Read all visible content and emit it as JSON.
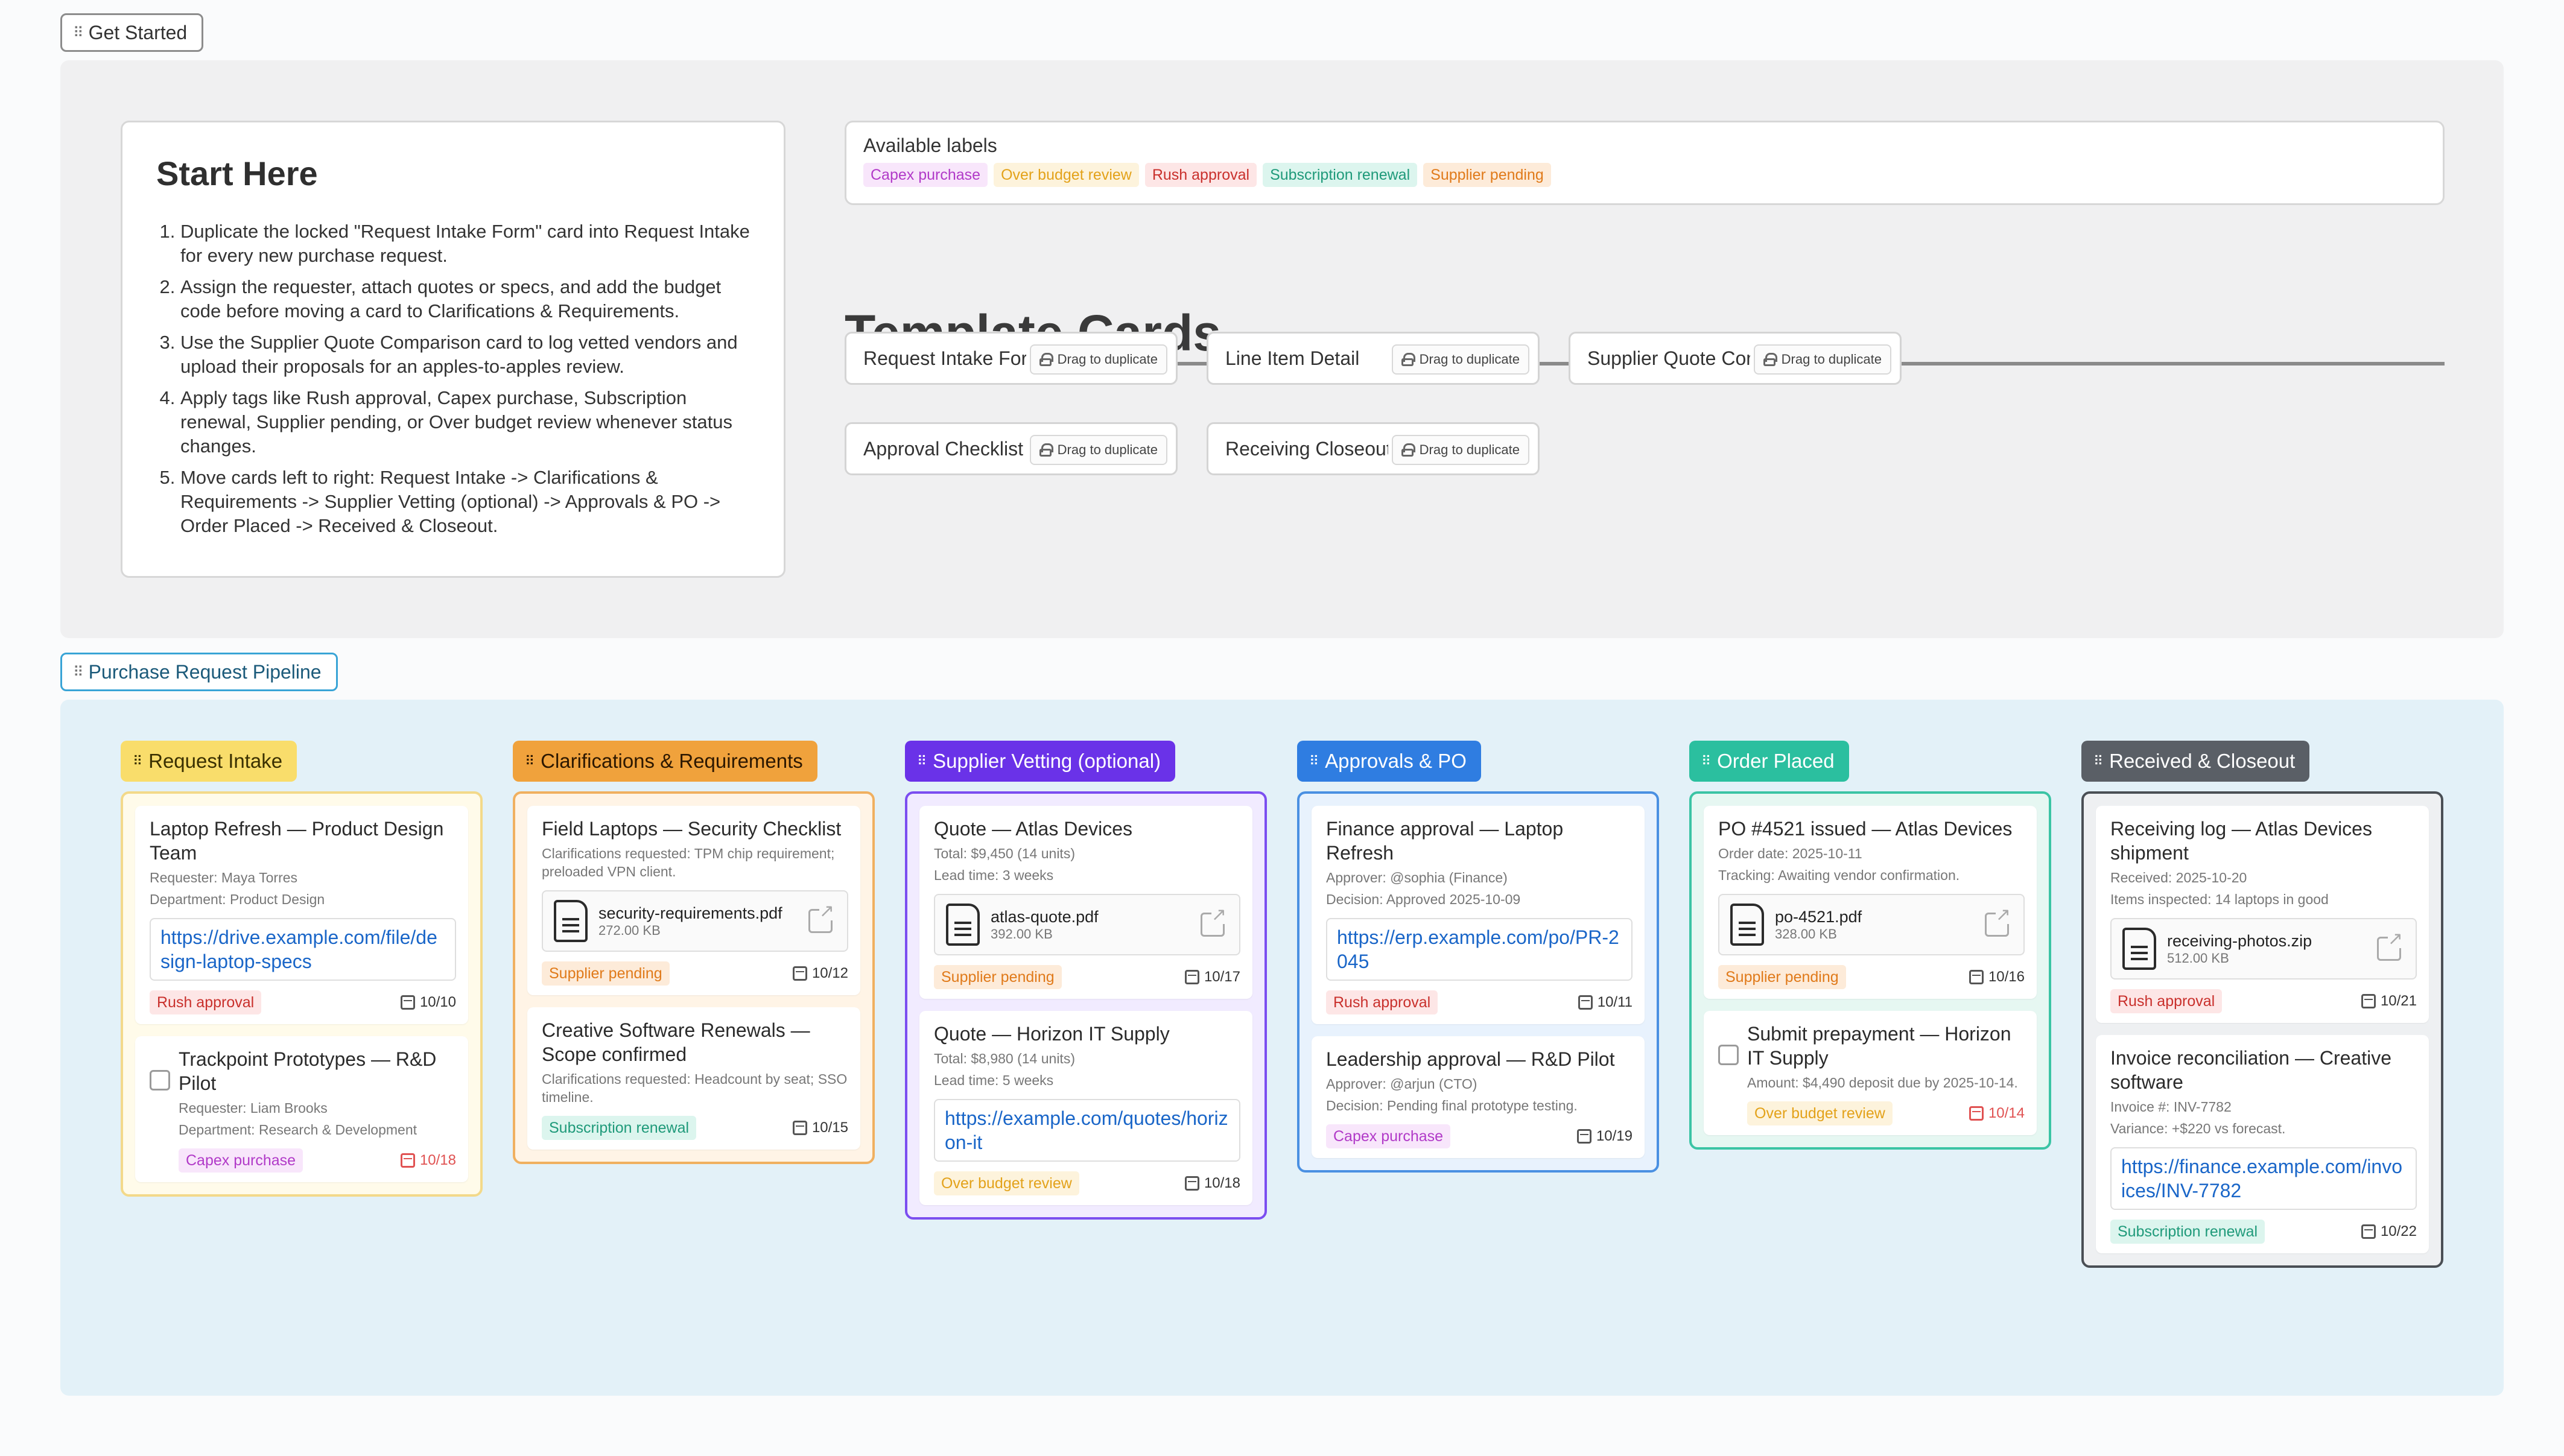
{
  "sections": {
    "get_started": "Get Started",
    "pipeline": "Purchase Request Pipeline"
  },
  "start_here": {
    "title": "Start Here",
    "steps": [
      "Duplicate the locked \"Request Intake Form\" card into Request Intake for every new purchase request.",
      "Assign the requester, attach quotes or specs, and add the budget code before moving a card to Clarifications & Requirements.",
      "Use the Supplier Quote Comparison card to log vetted vendors and upload their proposals for an apples-to-apples review.",
      "Apply tags like Rush approval, Capex purchase, Subscription renewal, Supplier pending, or Over budget review whenever status changes.",
      "Move cards left to right: Request Intake -> Clarifications & Requirements -> Supplier Vetting (optional) -> Approvals & PO -> Order Placed -> Received & Closeout."
    ]
  },
  "labels_panel": {
    "title": "Available labels",
    "labels": [
      {
        "text": "Capex purchase",
        "bg": "#f8e6fb",
        "fg": "#b13ac8"
      },
      {
        "text": "Over budget review",
        "bg": "#fdf3dc",
        "fg": "#e3a21a"
      },
      {
        "text": "Rush approval",
        "bg": "#fde6e6",
        "fg": "#c9302c"
      },
      {
        "text": "Subscription renewal",
        "bg": "#dcf5ee",
        "fg": "#1f9a7a"
      },
      {
        "text": "Supplier pending",
        "bg": "#fdebd9",
        "fg": "#e07a1a"
      }
    ]
  },
  "template_cards": {
    "title": "Template Cards",
    "drag_label": "Drag to duplicate",
    "cards": [
      "Request Intake Form",
      "Line Item Detail",
      "Supplier Quote Comparison",
      "Approval Checklist",
      "Receiving Closeout"
    ]
  },
  "columns": [
    {
      "title": "Request Intake",
      "header_bg": "#f9dd6b",
      "header_fg": "#3a3000",
      "border": "#f3d98a",
      "body_bg": "#fffbea",
      "cards": [
        {
          "title": "Laptop Refresh — Product Design Team",
          "meta": [
            "Requester: Maya Torres",
            "Department: Product Design"
          ],
          "link": "https://drive.example.com/file/design-laptop-specs",
          "label": {
            "text": "Rush approval",
            "bg": "#fde6e6",
            "fg": "#c9302c"
          },
          "date": "10/10"
        },
        {
          "title": "Trackpoint Prototypes — R&D Pilot",
          "checkbox": true,
          "meta": [
            "Requester: Liam Brooks",
            "Department: Research & Development"
          ],
          "label": {
            "text": "Capex purchase",
            "bg": "#f8e6fb",
            "fg": "#b13ac8"
          },
          "date": "10/18",
          "overdue": true
        }
      ]
    },
    {
      "title": "Clarifications & Requirements",
      "header_bg": "#f0a23c",
      "header_fg": "#2d1800",
      "border": "#f0b060",
      "body_bg": "#fff4e6",
      "cards": [
        {
          "title": "Field Laptops — Security Checklist",
          "meta": [
            "Clarifications requested: TPM chip requirement; preloaded VPN client."
          ],
          "file": {
            "name": "security-requirements.pdf",
            "size": "272.00 KB"
          },
          "label": {
            "text": "Supplier pending",
            "bg": "#fdebd9",
            "fg": "#e07a1a"
          },
          "date": "10/12"
        },
        {
          "title": "Creative Software Renewals — Scope confirmed",
          "meta": [
            "Clarifications requested: Headcount by seat; SSO timeline."
          ],
          "label": {
            "text": "Subscription renewal",
            "bg": "#dcf5ee",
            "fg": "#1f9a7a"
          },
          "date": "10/15"
        }
      ]
    },
    {
      "title": "Supplier Vetting (optional)",
      "header_bg": "#6a32e8",
      "header_fg": "#ffffff",
      "border": "#7b4ef0",
      "body_bg": "#f1ebff",
      "cards": [
        {
          "title": "Quote — Atlas Devices",
          "meta": [
            "Total: $9,450 (14 units)",
            "Lead time: 3 weeks"
          ],
          "file": {
            "name": "atlas-quote.pdf",
            "size": "392.00 KB"
          },
          "label": {
            "text": "Supplier pending",
            "bg": "#fdebd9",
            "fg": "#e07a1a"
          },
          "date": "10/17"
        },
        {
          "title": "Quote — Horizon IT Supply",
          "meta": [
            "Total: $8,980 (14 units)",
            "Lead time: 5 weeks"
          ],
          "link": "https://example.com/quotes/horizon-it",
          "label": {
            "text": "Over budget review",
            "bg": "#fdf3dc",
            "fg": "#e3a21a"
          },
          "date": "10/18"
        }
      ]
    },
    {
      "title": "Approvals & PO",
      "header_bg": "#2f7de1",
      "header_fg": "#ffffff",
      "border": "#4a90e2",
      "body_bg": "#e8f2fd",
      "cards": [
        {
          "title": "Finance approval — Laptop Refresh",
          "meta": [
            "Approver: @sophia (Finance)",
            "Decision: Approved 2025-10-09"
          ],
          "link": "https://erp.example.com/po/PR-2045",
          "label": {
            "text": "Rush approval",
            "bg": "#fde6e6",
            "fg": "#c9302c"
          },
          "date": "10/11"
        },
        {
          "title": "Leadership approval — R&D Pilot",
          "meta": [
            "Approver: @arjun (CTO)",
            "Decision: Pending final prototype testing."
          ],
          "label": {
            "text": "Capex purchase",
            "bg": "#f8e6fb",
            "fg": "#b13ac8"
          },
          "date": "10/19"
        }
      ]
    },
    {
      "title": "Order Placed",
      "header_bg": "#2bbf9f",
      "header_fg": "#ffffff",
      "border": "#3bc4a4",
      "body_bg": "#e6f7f2",
      "cards": [
        {
          "title": "PO #4521 issued — Atlas Devices",
          "meta": [
            "Order date: 2025-10-11",
            "Tracking: Awaiting vendor confirmation."
          ],
          "file": {
            "name": "po-4521.pdf",
            "size": "328.00 KB"
          },
          "label": {
            "text": "Supplier pending",
            "bg": "#fdebd9",
            "fg": "#e07a1a"
          },
          "date": "10/16"
        },
        {
          "title": "Submit prepayment — Horizon IT Supply",
          "checkbox": true,
          "meta": [
            "Amount: $4,490 deposit due by 2025-10-14."
          ],
          "label": {
            "text": "Over budget review",
            "bg": "#fdf3dc",
            "fg": "#e3a21a"
          },
          "date": "10/14",
          "overdue": true
        }
      ]
    },
    {
      "title": "Received & Closeout",
      "header_bg": "#5a5f66",
      "header_fg": "#ffffff",
      "border": "#4a4f55",
      "body_bg": "#eef0f2",
      "cards": [
        {
          "title": "Receiving log — Atlas Devices shipment",
          "meta": [
            "Received: 2025-10-20",
            "Items inspected: 14 laptops in good"
          ],
          "file": {
            "name": "receiving-photos.zip",
            "size": "512.00 KB"
          },
          "label": {
            "text": "Rush approval",
            "bg": "#fde6e6",
            "fg": "#c9302c"
          },
          "date": "10/21"
        },
        {
          "title": "Invoice reconciliation — Creative software",
          "meta": [
            "Invoice #: INV-7782",
            "Variance: +$220 vs forecast."
          ],
          "link": "https://finance.example.com/invoices/INV-7782",
          "label": {
            "text": "Subscription renewal",
            "bg": "#dcf5ee",
            "fg": "#1f9a7a"
          },
          "date": "10/22"
        }
      ]
    }
  ]
}
